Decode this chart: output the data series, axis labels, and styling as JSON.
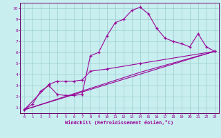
{
  "xlabel": "Windchill (Refroidissement éolien,°C)",
  "bg_color": "#c8eef0",
  "line_color": "#990099",
  "grid_color": "#99cccc",
  "axis_color": "#660066",
  "xlim": [
    -0.5,
    23.5
  ],
  "ylim": [
    0.5,
    10.5
  ],
  "xticks": [
    0,
    1,
    2,
    3,
    4,
    5,
    6,
    7,
    8,
    9,
    10,
    11,
    12,
    13,
    14,
    15,
    16,
    17,
    18,
    19,
    20,
    21,
    22,
    23
  ],
  "yticks": [
    1,
    2,
    3,
    4,
    5,
    6,
    7,
    8,
    9,
    10
  ],
  "line1_x": [
    0,
    1,
    2,
    3,
    4,
    5,
    6,
    7,
    8,
    9,
    10,
    11,
    12,
    13,
    14,
    15,
    16,
    17,
    18,
    19,
    20,
    21,
    22,
    23
  ],
  "line1_y": [
    0.8,
    1.3,
    2.5,
    3.0,
    2.2,
    2.1,
    2.1,
    2.2,
    5.7,
    6.0,
    7.5,
    8.7,
    9.0,
    9.8,
    10.1,
    9.5,
    8.2,
    7.3,
    7.0,
    6.8,
    6.5,
    7.7,
    6.5,
    6.1
  ],
  "line2_x": [
    0,
    3,
    4,
    5,
    6,
    7,
    8,
    10,
    14,
    23
  ],
  "line2_y": [
    0.8,
    3.1,
    3.4,
    3.4,
    3.4,
    3.5,
    4.3,
    4.5,
    5.0,
    6.1
  ],
  "line3_x": [
    0,
    14,
    23
  ],
  "line3_y": [
    0.8,
    4.2,
    6.1
  ],
  "line4_x": [
    0,
    23
  ],
  "line4_y": [
    0.8,
    6.1
  ]
}
